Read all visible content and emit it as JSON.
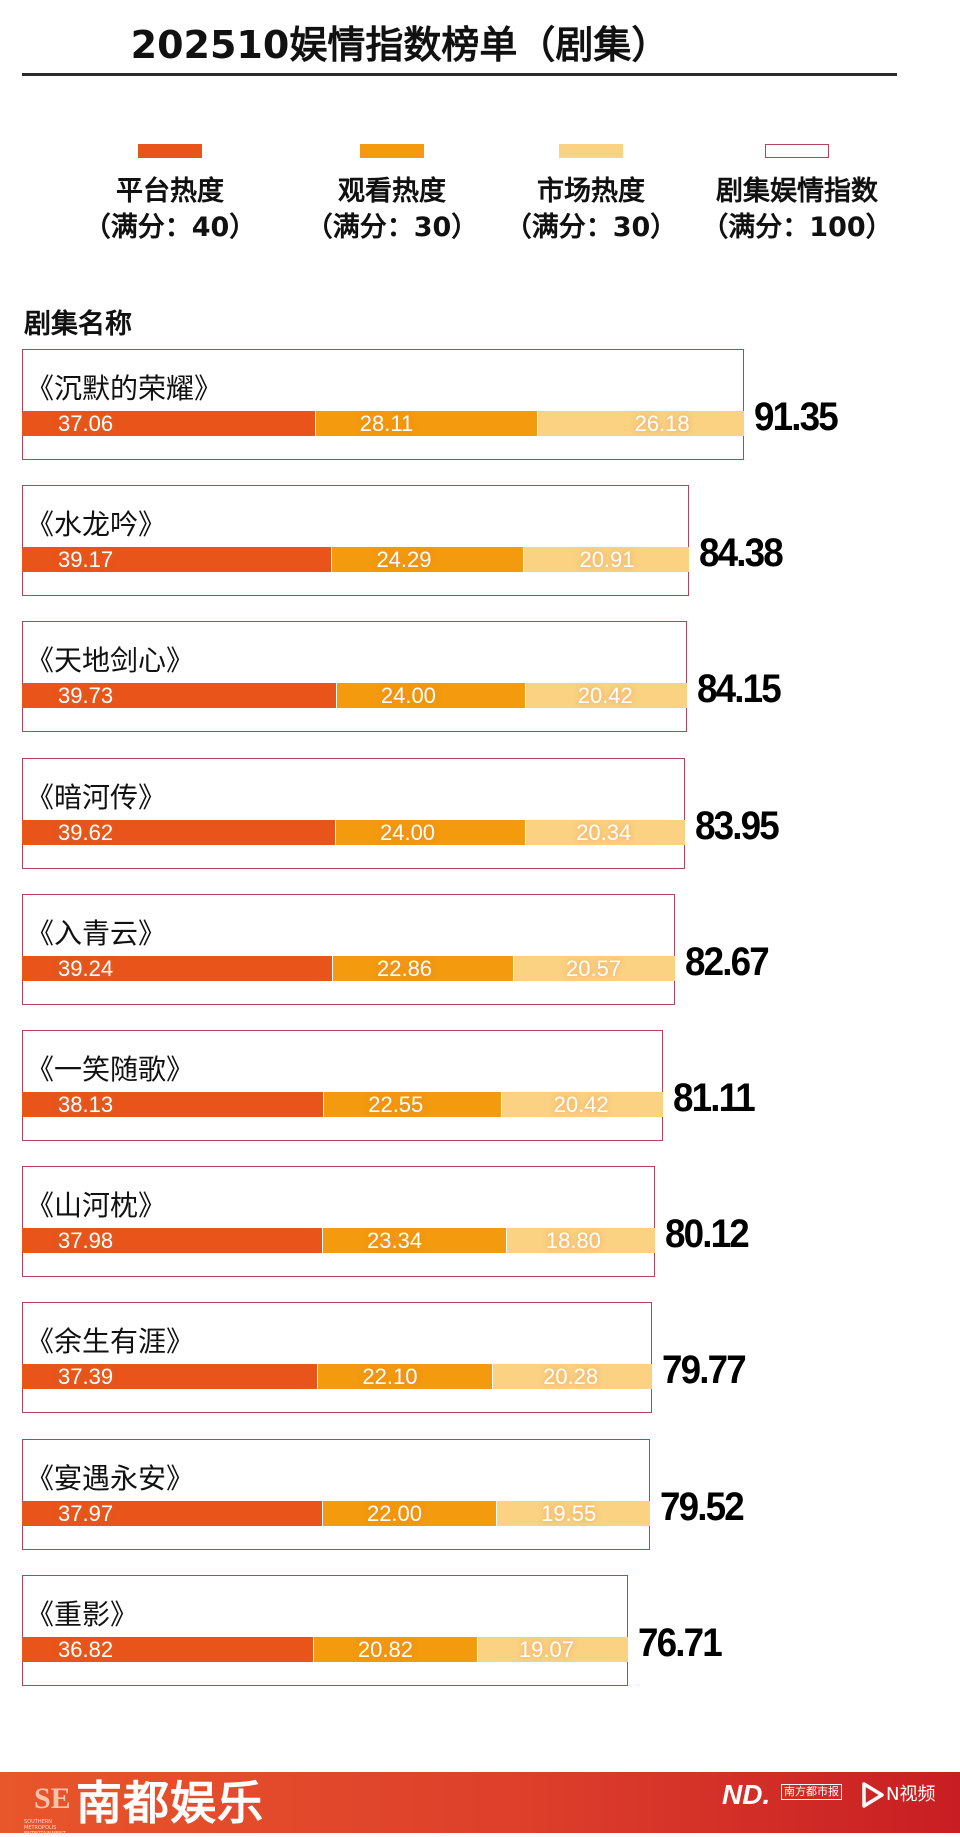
{
  "header": {
    "title": "202510娱情指数榜单（剧集）"
  },
  "legend": [
    {
      "label": "平台热度",
      "sub": "（满分：40）",
      "color": "#E8541A",
      "type": "fill"
    },
    {
      "label": "观看热度",
      "sub": "（满分：30）",
      "color": "#F39A0E",
      "type": "fill"
    },
    {
      "label": "市场热度",
      "sub": "（满分：30）",
      "color": "#FAD282",
      "type": "fill"
    },
    {
      "label": "剧集娱情指数",
      "sub": "（满分：100）",
      "color": "#B4445A",
      "type": "outline"
    }
  ],
  "table": {
    "column_header": "剧集名称"
  },
  "rows": [
    {
      "name": "《沉默的荣耀》",
      "platform": "37.06",
      "watch": "28.11",
      "market": "26.18",
      "total": "91.35"
    },
    {
      "name": "《水龙吟》",
      "platform": "39.17",
      "watch": "24.29",
      "market": "20.91",
      "total": "84.38"
    },
    {
      "name": "《天地剑心》",
      "platform": "39.73",
      "watch": "24.00",
      "market": "20.42",
      "total": "84.15"
    },
    {
      "name": "《暗河传》",
      "platform": "39.62",
      "watch": "24.00",
      "market": "20.34",
      "total": "83.95"
    },
    {
      "name": "《入青云》",
      "platform": "39.24",
      "watch": "22.86",
      "market": "20.57",
      "total": "82.67"
    },
    {
      "name": "《一笑随歌》",
      "platform": "38.13",
      "watch": "22.55",
      "market": "20.42",
      "total": "81.11"
    },
    {
      "name": "《山河枕》",
      "platform": "37.98",
      "watch": "23.34",
      "market": "18.80",
      "total": "80.12"
    },
    {
      "name": "《余生有涯》",
      "platform": "37.39",
      "watch": "22.10",
      "market": "20.28",
      "total": "79.77"
    },
    {
      "name": "《宴遇永安》",
      "platform": "37.97",
      "watch": "22.00",
      "market": "19.55",
      "total": "79.52"
    },
    {
      "name": "《重影》",
      "platform": "36.82",
      "watch": "20.82",
      "market": "19.07",
      "total": "76.71"
    }
  ],
  "footer": {
    "brand": "南都娱乐",
    "logo_mark": "SE",
    "logo_sub": "SOUTHERN METROPOLIS ENTERTAINMENT",
    "nd_logo": "ND.",
    "paper_name": "南方都市报",
    "nvideo": "N视频",
    "background_colors": [
      "#E8562B",
      "#C81E23"
    ]
  },
  "chart_data": {
    "type": "bar",
    "orientation": "horizontal",
    "stacked": true,
    "title": "202510娱情指数榜单（剧集）",
    "xlabel": "",
    "ylabel": "剧集名称",
    "categories": [
      "《沉默的荣耀》",
      "《水龙吟》",
      "《天地剑心》",
      "《暗河传》",
      "《入青云》",
      "《一笑随歌》",
      "《山河枕》",
      "《余生有涯》",
      "《宴遇永安》",
      "《重影》"
    ],
    "series": [
      {
        "name": "平台热度（满分：40）",
        "color": "#E8541A",
        "values": [
          37.06,
          39.17,
          39.73,
          39.62,
          39.24,
          38.13,
          37.98,
          37.39,
          37.97,
          36.82
        ]
      },
      {
        "name": "观看热度（满分：30）",
        "color": "#F39A0E",
        "values": [
          28.11,
          24.29,
          24.0,
          24.0,
          22.86,
          22.55,
          23.34,
          22.1,
          22.0,
          20.82
        ]
      },
      {
        "name": "市场热度（满分：30）",
        "color": "#FAD282",
        "values": [
          26.18,
          20.91,
          20.42,
          20.34,
          20.57,
          20.42,
          18.8,
          20.28,
          19.55,
          19.07
        ]
      }
    ],
    "totals": {
      "name": "剧集娱情指数（满分：100）",
      "values": [
        91.35,
        84.38,
        84.15,
        83.95,
        82.67,
        81.11,
        80.12,
        79.77,
        79.52,
        76.71
      ]
    },
    "legend_position": "top",
    "grid": false,
    "xlim": [
      0,
      100
    ]
  }
}
